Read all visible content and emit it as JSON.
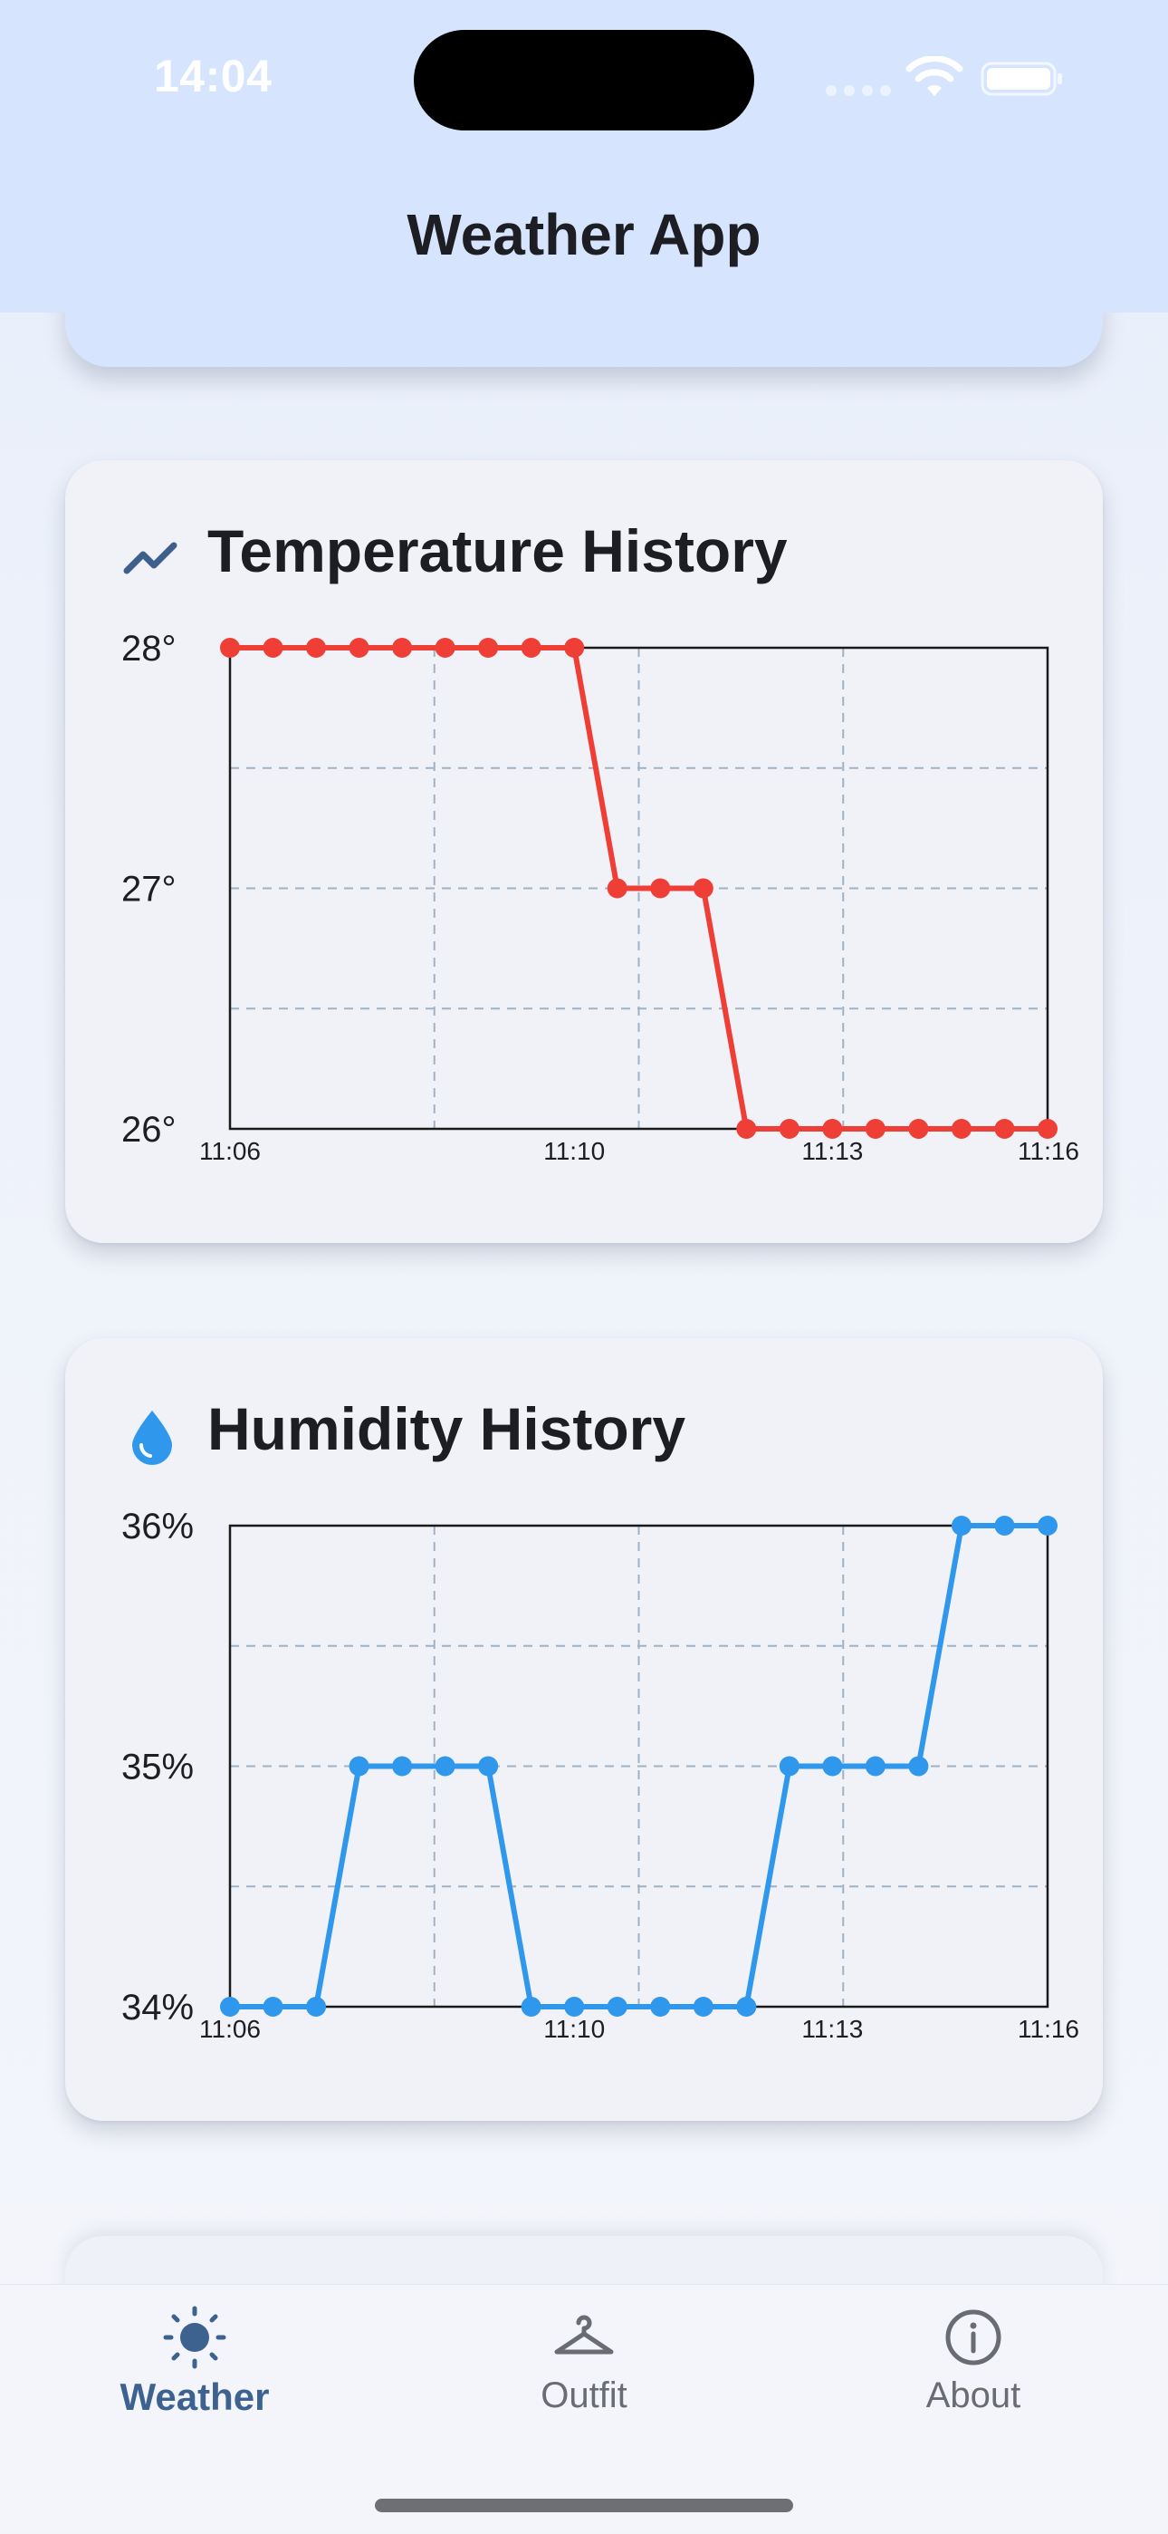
{
  "status_bar": {
    "time": "14:04"
  },
  "header": {
    "title": "Weather App"
  },
  "colors": {
    "header_bg": "#d6e5fd",
    "temperature_line": "#ef3e36",
    "humidity_line": "#2f97ec",
    "nav_active": "#3d6290",
    "nav_inactive": "#6a6c73"
  },
  "temperature_card": {
    "title": "Temperature History",
    "icon": "trending-up-icon"
  },
  "humidity_card": {
    "title": "Humidity History",
    "icon": "water-drop-icon"
  },
  "chart_data": [
    {
      "type": "line",
      "title": "Temperature History",
      "y_tick_labels": [
        "28°",
        "27°",
        "26°"
      ],
      "ylim": [
        26,
        28
      ],
      "x_tick_labels": [
        "11:06",
        "11:10",
        "11:13",
        "11:16"
      ],
      "x_tick_minutes": [
        6,
        10,
        13,
        16
      ],
      "x_minutes": [
        6,
        6.5,
        7,
        7.5,
        8,
        8.5,
        9,
        9.5,
        10,
        10.5,
        11,
        11.5,
        12,
        12.5,
        13,
        13.5,
        14,
        14.5,
        15,
        15.5
      ],
      "xlim": [
        6,
        15.5
      ],
      "series": [
        {
          "values": [
            28,
            28,
            28,
            28,
            28,
            28,
            28,
            28,
            28,
            27,
            27,
            27,
            26,
            26,
            26,
            26,
            26,
            26,
            26,
            26
          ],
          "color": "#ef3e36"
        }
      ],
      "grid": true
    },
    {
      "type": "line",
      "title": "Humidity History",
      "y_tick_labels": [
        "36%",
        "35%",
        "34%"
      ],
      "ylim": [
        34,
        36
      ],
      "x_tick_labels": [
        "11:06",
        "11:10",
        "11:13",
        "11:16"
      ],
      "x_tick_minutes": [
        6,
        10,
        13,
        16
      ],
      "x_minutes": [
        6,
        6.5,
        7,
        7.5,
        8,
        8.5,
        9,
        9.5,
        10,
        10.5,
        11,
        11.5,
        12,
        12.5,
        13,
        13.5,
        14,
        14.5,
        15,
        15.5
      ],
      "xlim": [
        6,
        15.5
      ],
      "series": [
        {
          "values": [
            34,
            34,
            34,
            35,
            35,
            35,
            35,
            34,
            34,
            34,
            34,
            34,
            34,
            35,
            35,
            35,
            35,
            36,
            36,
            36
          ],
          "color": "#2f97ec"
        }
      ],
      "grid": true
    }
  ],
  "bottom_nav": {
    "items": [
      {
        "label": "Weather",
        "icon": "sun-icon",
        "active": true
      },
      {
        "label": "Outfit",
        "icon": "hanger-icon",
        "active": false
      },
      {
        "label": "About",
        "icon": "info-icon",
        "active": false
      }
    ]
  }
}
